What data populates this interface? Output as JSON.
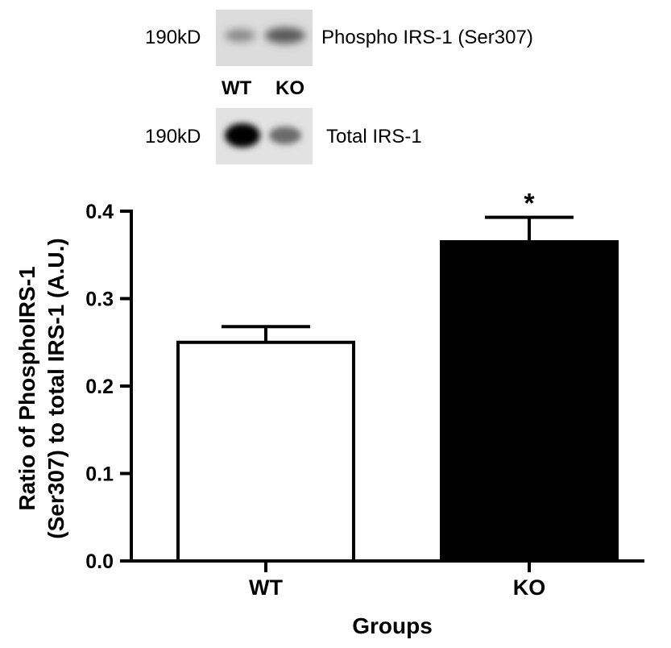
{
  "blots": {
    "phospho": {
      "mw": "190kD",
      "label": "Phospho IRS-1 (Ser307)"
    },
    "total": {
      "mw": "190kD",
      "label": "Total IRS-1"
    },
    "lanes": [
      "WT",
      "KO"
    ]
  },
  "chart_data": {
    "type": "bar",
    "categories": [
      "WT",
      "KO"
    ],
    "values": [
      0.25,
      0.365
    ],
    "errors": [
      0.018,
      0.028
    ],
    "bar_fills": [
      "#ffffff",
      "#000000"
    ],
    "significance": [
      "",
      "*"
    ],
    "ylim": [
      0.0,
      0.4
    ],
    "yticks": [
      "0.0",
      "0.1",
      "0.2",
      "0.3",
      "0.4"
    ],
    "ylabel_line1": "Ratio of PhosphoIRS-1",
    "ylabel_line2": "(Ser307) to total IRS-1 (A.U.)",
    "xlabel": "Groups",
    "grid": false,
    "legend": "none"
  }
}
